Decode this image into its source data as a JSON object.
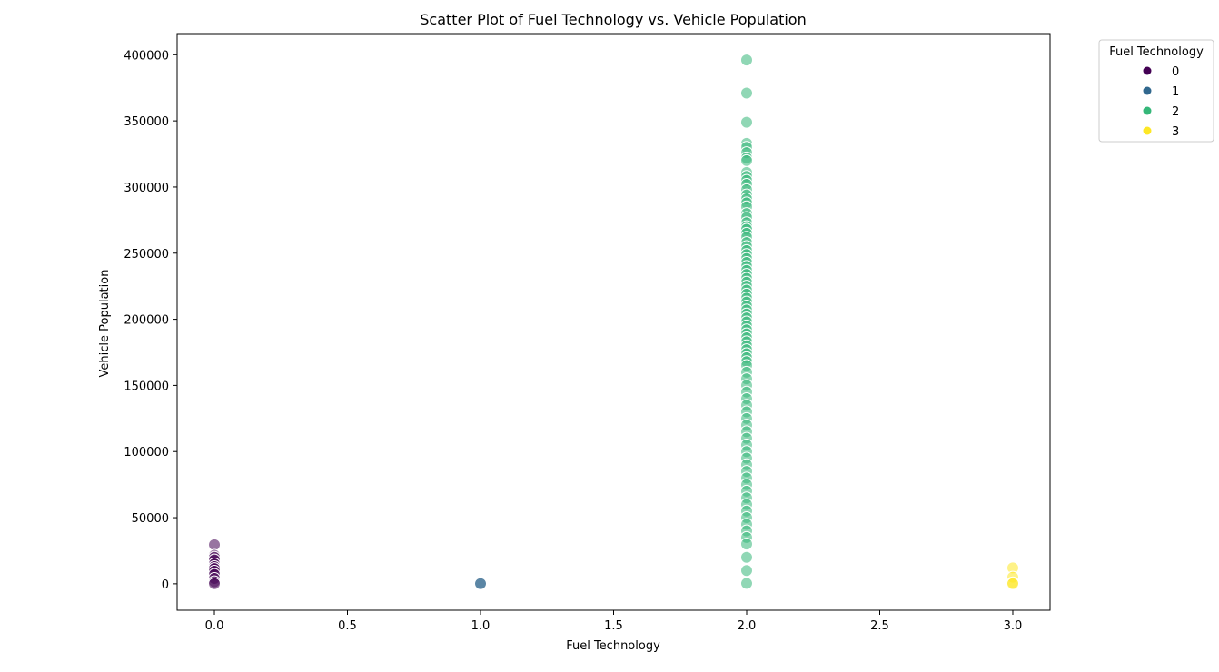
{
  "chart_data": {
    "type": "scatter",
    "title": "Scatter Plot of Fuel Technology vs. Vehicle Population",
    "xlabel": "Fuel Technology",
    "ylabel": "Vehicle Population",
    "xlim": [
      -0.14,
      3.14
    ],
    "ylim": [
      -20000,
      416000
    ],
    "xticks": [
      0.0,
      0.5,
      1.0,
      1.5,
      2.0,
      2.5,
      3.0
    ],
    "xtick_labels": [
      "0.0",
      "0.5",
      "1.0",
      "1.5",
      "2.0",
      "2.5",
      "3.0"
    ],
    "yticks": [
      0,
      50000,
      100000,
      150000,
      200000,
      250000,
      300000,
      350000,
      400000
    ],
    "ytick_labels": [
      "0",
      "50000",
      "100000",
      "150000",
      "200000",
      "250000",
      "300000",
      "350000",
      "400000"
    ],
    "grid": false,
    "legend": {
      "title": "Fuel Technology",
      "placement": "outside-top-right",
      "entries": [
        {
          "label": "0",
          "color": "#440154"
        },
        {
          "label": "1",
          "color": "#31688e"
        },
        {
          "label": "2",
          "color": "#35b779"
        },
        {
          "label": "3",
          "color": "#fde725"
        }
      ]
    },
    "series": [
      {
        "name": "0",
        "color": "#440154",
        "x": [
          0,
          0,
          0,
          0,
          0,
          0,
          0,
          0,
          0,
          0,
          0,
          0
        ],
        "y": [
          29500,
          21500,
          20000,
          18000,
          15000,
          13000,
          11500,
          9500,
          7000,
          4000,
          1500,
          100
        ]
      },
      {
        "name": "1",
        "color": "#31688e",
        "x": [
          1,
          1
        ],
        "y": [
          300,
          50
        ]
      },
      {
        "name": "2",
        "color": "#35b779",
        "x": [
          2,
          2,
          2,
          2,
          2,
          2,
          2,
          2,
          2,
          2,
          2,
          2,
          2,
          2,
          2,
          2,
          2,
          2,
          2,
          2,
          2,
          2,
          2,
          2,
          2,
          2,
          2,
          2,
          2,
          2,
          2,
          2,
          2,
          2,
          2,
          2,
          2,
          2,
          2,
          2,
          2,
          2,
          2,
          2,
          2,
          2,
          2,
          2,
          2,
          2,
          2,
          2,
          2,
          2,
          2,
          2,
          2,
          2,
          2,
          2,
          2,
          2,
          2,
          2,
          2,
          2,
          2,
          2,
          2,
          2,
          2,
          2,
          2,
          2,
          2,
          2,
          2,
          2,
          2,
          2,
          2,
          2,
          2,
          2,
          2,
          2
        ],
        "y": [
          396000,
          371000,
          349000,
          333000,
          330000,
          326000,
          322000,
          320000,
          311000,
          308000,
          305000,
          302000,
          298000,
          294000,
          291000,
          288000,
          285000,
          280000,
          277000,
          273000,
          270000,
          268000,
          265000,
          262000,
          258000,
          255000,
          252000,
          249000,
          246000,
          243000,
          240000,
          237000,
          234000,
          231000,
          228000,
          225000,
          222000,
          219000,
          216000,
          213000,
          210000,
          207000,
          204000,
          201000,
          198000,
          195000,
          192000,
          189000,
          186000,
          183000,
          180000,
          177000,
          174000,
          171000,
          168000,
          165000,
          160000,
          155000,
          150000,
          145000,
          140000,
          135000,
          130000,
          125000,
          120000,
          115000,
          110000,
          105000,
          100000,
          95000,
          90000,
          85000,
          80000,
          75000,
          70000,
          65000,
          60000,
          55000,
          50000,
          45000,
          40000,
          35000,
          30000,
          20000,
          10000,
          300
        ]
      },
      {
        "name": "3",
        "color": "#fde725",
        "x": [
          3,
          3,
          3,
          3
        ],
        "y": [
          12000,
          5000,
          800,
          100
        ]
      }
    ]
  }
}
